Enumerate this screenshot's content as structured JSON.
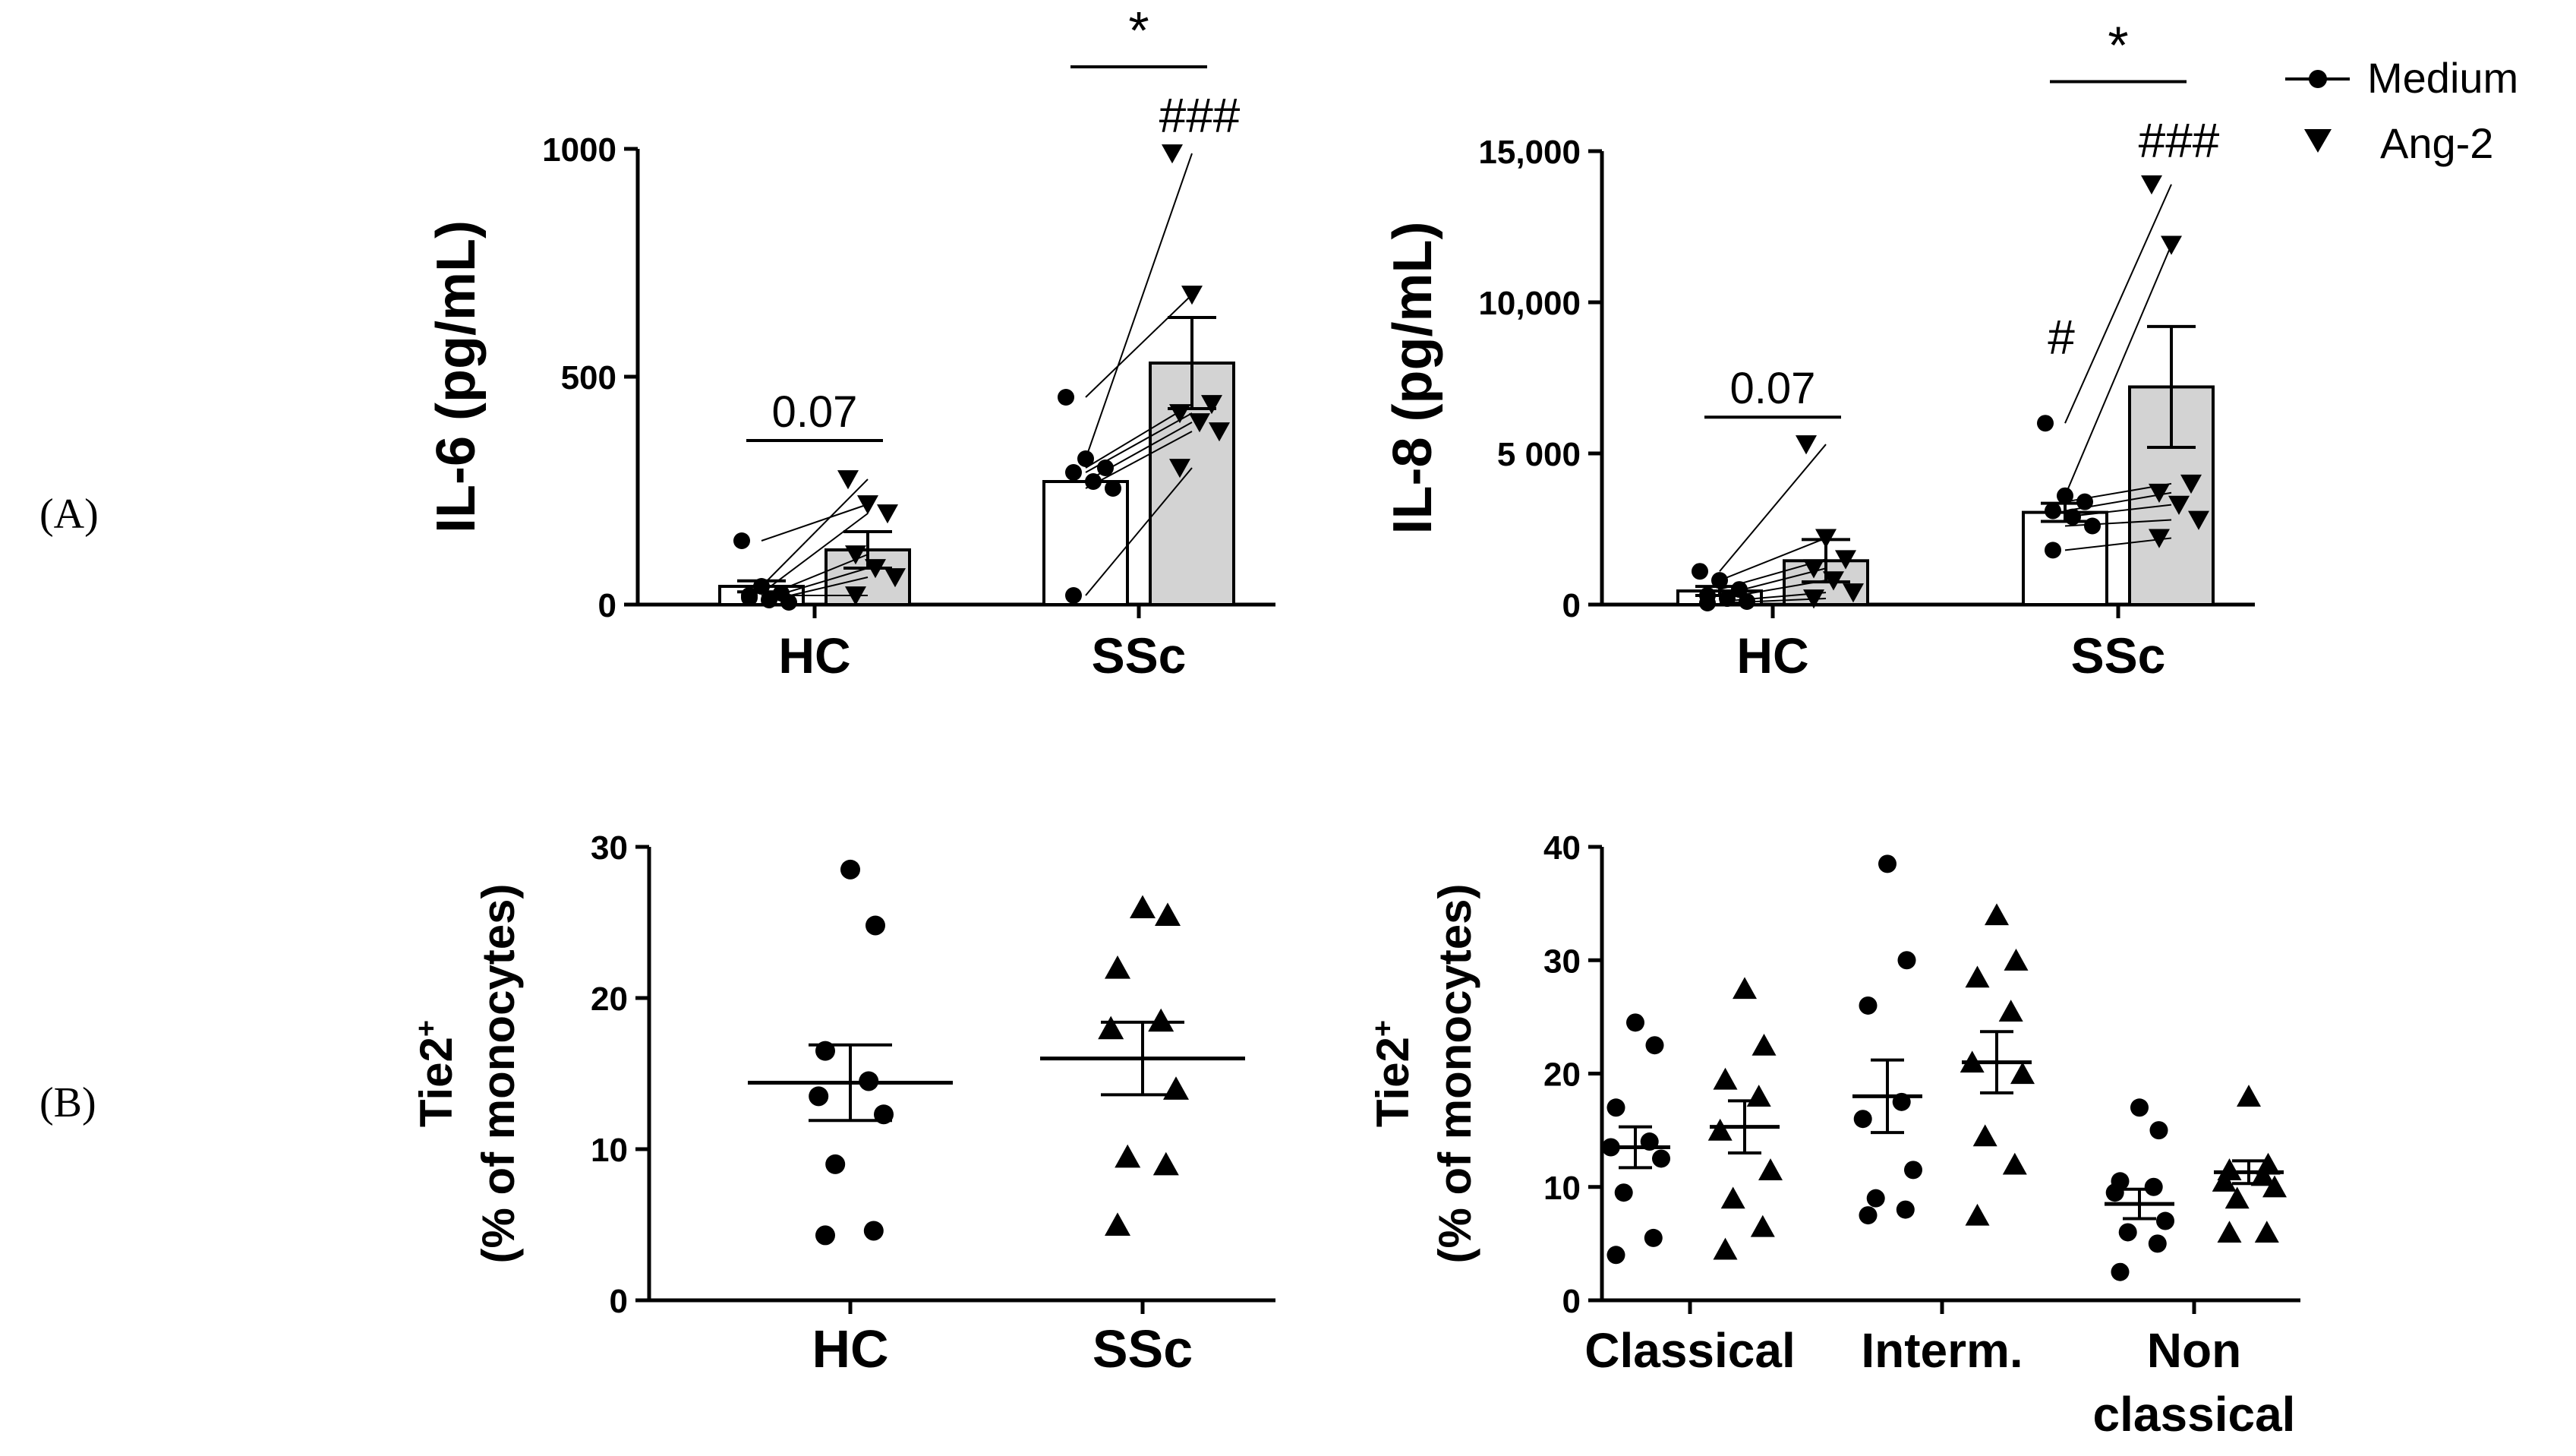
{
  "panel_labels": {
    "a": "(A)",
    "b": "(B)"
  },
  "legend": [
    {
      "name": "Medium",
      "marker": "circle"
    },
    {
      "name": "Ang-2",
      "marker": "triangle-down"
    }
  ],
  "chart_data": [
    {
      "id": "il6",
      "type": "bar",
      "ylabel": "IL-6 (pg/mL)",
      "ylim": [
        0,
        1000
      ],
      "yticks": [
        0,
        500,
        1000
      ],
      "ytick_labels": [
        "0",
        "500",
        "1000"
      ],
      "categories": [
        "HC",
        "SSc"
      ],
      "series": [
        {
          "name": "Medium",
          "values": [
            40,
            270
          ],
          "sem": [
            12,
            0
          ],
          "fill": "#ffffff",
          "points": [
            [
              140,
              40,
              25,
              15,
              10,
              5,
              20
            ],
            [
              455,
              320,
              300,
              290,
              270,
              255,
              20
            ]
          ]
        },
        {
          "name": "Ang-2",
          "values": [
            120,
            530
          ],
          "sem": [
            40,
            100
          ],
          "fill": "#d3d3d3",
          "points": [
            [
              275,
              220,
              200,
              110,
              80,
              60,
              20
            ],
            [
              990,
              680,
              440,
              420,
              400,
              380,
              300
            ]
          ]
        }
      ],
      "pairs": [
        [
          [
            140,
            220
          ],
          [
            40,
            275
          ],
          [
            25,
            200
          ],
          [
            15,
            110
          ],
          [
            10,
            80
          ],
          [
            5,
            60
          ],
          [
            20,
            20
          ]
        ],
        [
          [
            455,
            680
          ],
          [
            320,
            990
          ],
          [
            300,
            440
          ],
          [
            290,
            420
          ],
          [
            270,
            400
          ],
          [
            255,
            380
          ],
          [
            20,
            300
          ]
        ]
      ],
      "annotations": [
        {
          "text": "0.07",
          "group": 0,
          "y": 360
        },
        {
          "text": "*",
          "group": 1,
          "y": 1180
        },
        {
          "text": "###",
          "group": 1,
          "y": 1070,
          "on": "Ang-2"
        }
      ]
    },
    {
      "id": "il8",
      "type": "bar",
      "ylabel": "IL-8 (pg/mL)",
      "ylim": [
        0,
        15000
      ],
      "yticks": [
        0,
        5000,
        10000,
        15000
      ],
      "ytick_labels": [
        "0",
        "5 000",
        "10,000",
        "15,000"
      ],
      "categories": [
        "HC",
        "SSc"
      ],
      "series": [
        {
          "name": "Medium",
          "values": [
            450,
            3050
          ],
          "sem": [
            150,
            300
          ],
          "fill": "#ffffff",
          "points": [
            [
              1100,
              800,
              500,
              300,
              200,
              100,
              50
            ],
            [
              6000,
              3600,
              3400,
              3100,
              2900,
              2600,
              1800
            ]
          ]
        },
        {
          "name": "Ang-2",
          "values": [
            1450,
            7200
          ],
          "sem": [
            700,
            2000
          ],
          "fill": "#d3d3d3",
          "points": [
            [
              5300,
              2200,
              1500,
              1200,
              800,
              400,
              200
            ],
            [
              13900,
              11900,
              4000,
              3700,
              3300,
              2800,
              2200
            ]
          ]
        }
      ],
      "pairs": [
        [
          [
            1100,
            5300
          ],
          [
            800,
            2200
          ],
          [
            500,
            1500
          ],
          [
            300,
            1200
          ],
          [
            200,
            800
          ],
          [
            100,
            400
          ],
          [
            50,
            200
          ]
        ],
        [
          [
            6000,
            13900
          ],
          [
            3600,
            11900
          ],
          [
            3400,
            4000
          ],
          [
            3100,
            3700
          ],
          [
            2900,
            3300
          ],
          [
            2600,
            2800
          ],
          [
            1800,
            2200
          ]
        ]
      ],
      "annotations": [
        {
          "text": "0.07",
          "group": 0,
          "y": 6200
        },
        {
          "text": "#",
          "group": 1,
          "y": 8800,
          "on": "Medium"
        },
        {
          "text": "*",
          "group": 1,
          "y": 17300
        },
        {
          "text": "###",
          "group": 1,
          "y": 15300,
          "on": "Ang-2"
        }
      ]
    },
    {
      "id": "tie2-total",
      "type": "scatter",
      "ylabel_line1": "Tie2",
      "ylabel_sup": "+",
      "ylabel_line2": "(% of monocytes)",
      "ylim": [
        0,
        30
      ],
      "yticks": [
        0,
        10,
        20,
        30
      ],
      "ytick_labels": [
        "0",
        "10",
        "20",
        "30"
      ],
      "categories": [
        "HC",
        "SSc"
      ],
      "markers": [
        "circle",
        "triangle-up"
      ],
      "groups": [
        {
          "name": "HC",
          "mean": 14.4,
          "sem": 2.5,
          "points": [
            28.5,
            24.8,
            16.5,
            14.5,
            13.5,
            12.3,
            9.0,
            4.6,
            4.3
          ]
        },
        {
          "name": "SSc",
          "mean": 16.0,
          "sem": 2.4,
          "points": [
            26.0,
            25.5,
            22.0,
            18.5,
            18.0,
            14.0,
            9.5,
            9.0,
            5.0
          ]
        }
      ]
    },
    {
      "id": "tie2-subsets",
      "type": "scatter",
      "ylabel_line1": "Tie2",
      "ylabel_sup": "+",
      "ylabel_line2": "(% of monocytes)",
      "ylim": [
        0,
        40
      ],
      "yticks": [
        0,
        10,
        20,
        30,
        40
      ],
      "ytick_labels": [
        "0",
        "10",
        "20",
        "30",
        "40"
      ],
      "categories": [
        "Classical",
        "Interm.",
        "Non classical"
      ],
      "category_lines": [
        [
          "Classical"
        ],
        [
          "Interm."
        ],
        [
          "Non",
          "classical"
        ]
      ],
      "markers": [
        "circle",
        "triangle-up"
      ],
      "groups": [
        {
          "category": 0,
          "marker": "circle",
          "mean": 13.5,
          "sem": 1.8,
          "points": [
            24.5,
            22.5,
            17.0,
            14.0,
            13.5,
            12.5,
            9.5,
            5.5,
            4.0
          ]
        },
        {
          "category": 0,
          "marker": "triangle-up",
          "mean": 15.3,
          "sem": 2.3,
          "points": [
            27.5,
            22.5,
            19.5,
            18.0,
            15.0,
            11.5,
            9.0,
            6.5,
            4.5
          ]
        },
        {
          "category": 1,
          "marker": "circle",
          "mean": 18.0,
          "sem": 3.2,
          "points": [
            38.5,
            30.0,
            26.0,
            17.5,
            16.0,
            11.5,
            9.0,
            8.0,
            7.5
          ]
        },
        {
          "category": 1,
          "marker": "triangle-up",
          "mean": 21.0,
          "sem": 2.7,
          "points": [
            34.0,
            30.0,
            28.5,
            25.5,
            21.0,
            20.0,
            14.5,
            12.0,
            7.5
          ]
        },
        {
          "category": 2,
          "marker": "circle",
          "mean": 8.5,
          "sem": 1.3,
          "points": [
            17.0,
            15.0,
            10.5,
            10.0,
            9.5,
            7.0,
            6.0,
            5.0,
            2.5
          ]
        },
        {
          "category": 2,
          "marker": "triangle-up",
          "mean": 11.3,
          "sem": 1.0,
          "points": [
            18.0,
            12.0,
            11.5,
            11.0,
            10.5,
            10.0,
            9.0,
            6.0,
            6.0
          ]
        }
      ]
    }
  ]
}
